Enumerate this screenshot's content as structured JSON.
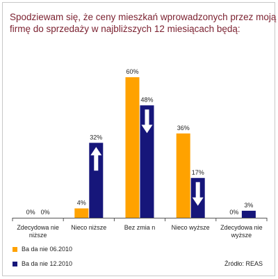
{
  "title_lines": [
    "Spodziewam się, że ceny mieszkań wprowadzonych przez moją",
    "firmę do sprzedaży w najbliższych 12 miesiącach będą:"
  ],
  "source": "Źródło: REAS",
  "colors": {
    "orange": "#FFA200",
    "navy": "#16167A",
    "title": "#7a1f2e"
  },
  "chart_data": {
    "type": "bar",
    "categories": [
      "Zdecydowanie niższe",
      "Nieco niższe",
      "Bez zmian",
      "Nieco wyższe",
      "Zdecydowanie wyższe"
    ],
    "category_lines": [
      [
        "Zdecydowa nie",
        "niższe"
      ],
      [
        "Nieco niższe"
      ],
      [
        "Bez zmia n"
      ],
      [
        "Nieco wyższe"
      ],
      [
        "Zdecydowa nie",
        "wyższe"
      ]
    ],
    "series": [
      {
        "name": "Ba da nie 06.2010",
        "values": [
          0,
          4,
          60,
          36,
          0
        ],
        "labels": [
          "0%",
          "4%",
          "60%",
          "36%",
          "0%"
        ],
        "color": "#FFA200"
      },
      {
        "name": "Ba da nie 12.2010",
        "values": [
          0,
          32,
          48,
          17,
          3
        ],
        "labels": [
          "0%",
          "32%",
          "48%",
          "17%",
          "3%"
        ],
        "color": "#16167A"
      }
    ],
    "arrows": [
      {
        "category": "Nieco niższe",
        "direction": "up"
      },
      {
        "category": "Bez zmian",
        "direction": "down"
      },
      {
        "category": "Nieco wyższe",
        "direction": "down"
      }
    ],
    "ylim": [
      0,
      60
    ],
    "legend_position": "bottom-left"
  }
}
